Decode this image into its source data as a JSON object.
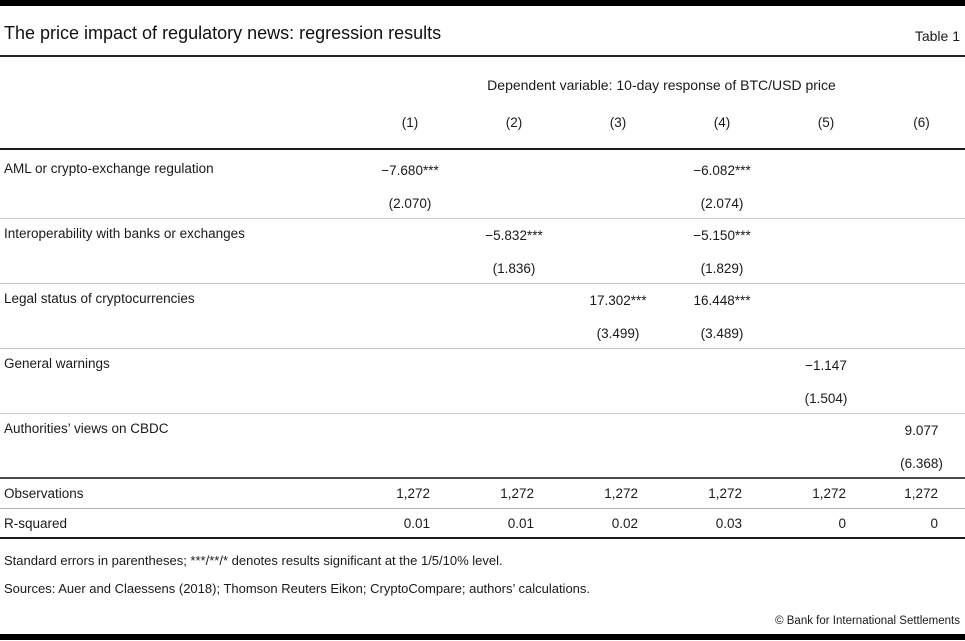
{
  "header": {
    "title": "The price impact of regulatory news: regression results",
    "table_label": "Table 1"
  },
  "table": {
    "dependent_variable_note": "Dependent variable: 10-day response of BTC/USD price",
    "column_headers": [
      "(1)",
      "(2)",
      "(3)",
      "(4)",
      "(5)",
      "(6)"
    ],
    "rows": [
      {
        "label": "AML or crypto-exchange regulation",
        "coef": [
          "−7.680***",
          "",
          "",
          "−6.082***",
          "",
          ""
        ],
        "se": [
          "(2.070)",
          "",
          "",
          "(2.074)",
          "",
          ""
        ]
      },
      {
        "label": "Interoperability with banks or exchanges",
        "coef": [
          "",
          "−5.832***",
          "",
          "−5.150***",
          "",
          ""
        ],
        "se": [
          "",
          "(1.836)",
          "",
          "(1.829)",
          "",
          ""
        ]
      },
      {
        "label": "Legal status of cryptocurrencies",
        "coef": [
          "",
          "",
          "17.302***",
          "16.448***",
          "",
          ""
        ],
        "se": [
          "",
          "",
          "(3.499)",
          "(3.489)",
          "",
          ""
        ]
      },
      {
        "label": "General warnings",
        "coef": [
          "",
          "",
          "",
          "",
          "−1.147",
          ""
        ],
        "se": [
          "",
          "",
          "",
          "",
          "(1.504)",
          ""
        ]
      },
      {
        "label": "Authorities’ views on CBDC",
        "coef": [
          "",
          "",
          "",
          "",
          "",
          "9.077"
        ],
        "se": [
          "",
          "",
          "",
          "",
          "",
          "(6.368)"
        ]
      }
    ],
    "stats": [
      {
        "label": "Observations",
        "values": [
          "1,272",
          "1,272",
          "1,272",
          "1,272",
          "1,272",
          "1,272"
        ]
      },
      {
        "label": "R-squared",
        "values": [
          "0.01",
          "0.01",
          "0.02",
          "0.03",
          "0",
          "0"
        ]
      }
    ]
  },
  "footnotes": [
    "Standard errors in parentheses; ***/**/* denotes results significant at the 1/5/10% level.",
    "Sources: Auer and Claessens (2018); Thomson Reuters Eikon; CryptoCompare; authors’ calculations."
  ],
  "copyright": "© Bank for International Settlements"
}
